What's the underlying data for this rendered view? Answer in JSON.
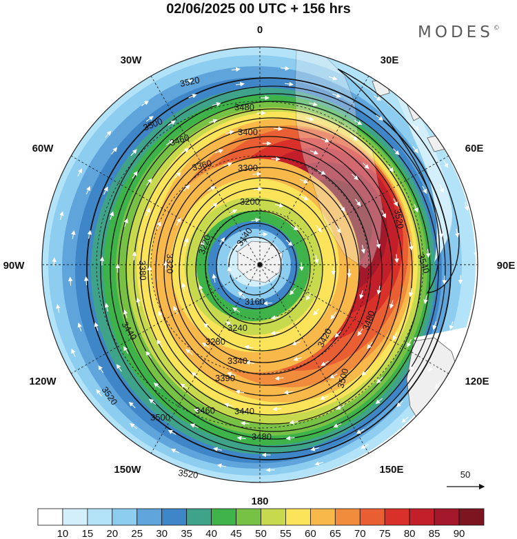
{
  "title": "02/06/2025  00 UTC  + 156 hrs",
  "brand": "MODES",
  "brand_mark": "©",
  "map": {
    "projection": "south-polar-stereographic",
    "longitude_labels": [
      "0",
      "30E",
      "60E",
      "90E",
      "120E",
      "150E",
      "180",
      "150W",
      "120W",
      "90W",
      "60W",
      "30W"
    ],
    "contour_labels": [
      "3520",
      "3480",
      "3500",
      "3460",
      "3400",
      "3360",
      "3300",
      "3200",
      "3140",
      "3220",
      "3160",
      "3240",
      "3280",
      "3340",
      "3390",
      "3440",
      "3420",
      "3380",
      "3320",
      "3440",
      "3460",
      "3500",
      "3520",
      "3480",
      "3520",
      "3540",
      "3520",
      "3500",
      "3480"
    ],
    "reference_vector_label": "50"
  },
  "colorbar": {
    "labels": [
      "10",
      "15",
      "20",
      "25",
      "30",
      "35",
      "40",
      "45",
      "50",
      "55",
      "60",
      "65",
      "70",
      "75",
      "80",
      "85",
      "90"
    ],
    "colors": [
      "#ffffff",
      "#d4effc",
      "#b2e3f8",
      "#8dcdf0",
      "#5fa5dc",
      "#3f86c8",
      "#3fa38a",
      "#3db34a",
      "#77c244",
      "#c7da4e",
      "#fbe35a",
      "#f9b84a",
      "#f08c3c",
      "#e95e33",
      "#d9302a",
      "#c21f2b",
      "#a3182a",
      "#7d1520"
    ]
  }
}
